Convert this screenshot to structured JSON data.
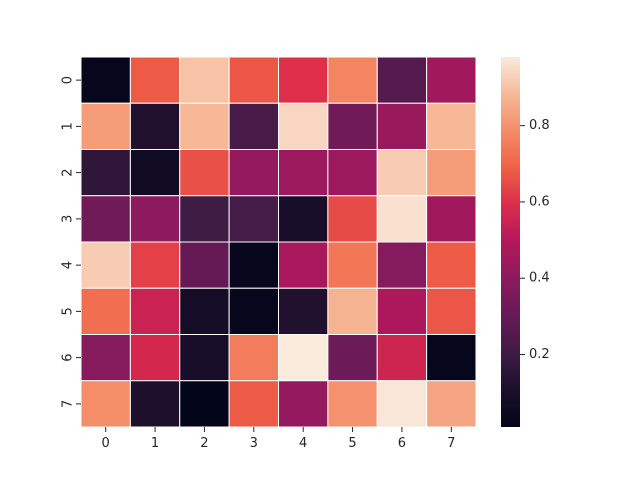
{
  "chart_data": {
    "type": "heatmap",
    "title": "",
    "xlabel": "",
    "ylabel": "",
    "x_categories": [
      "0",
      "1",
      "2",
      "3",
      "4",
      "5",
      "6",
      "7"
    ],
    "y_categories": [
      "0",
      "1",
      "2",
      "3",
      "4",
      "5",
      "6",
      "7"
    ],
    "values": [
      [
        0.02,
        0.68,
        0.9,
        0.67,
        0.6,
        0.77,
        0.26,
        0.45
      ],
      [
        0.82,
        0.12,
        0.88,
        0.23,
        0.94,
        0.33,
        0.43,
        0.88
      ],
      [
        0.16,
        0.06,
        0.66,
        0.42,
        0.44,
        0.44,
        0.92,
        0.82
      ],
      [
        0.33,
        0.4,
        0.2,
        0.22,
        0.09,
        0.65,
        0.96,
        0.45
      ],
      [
        0.92,
        0.63,
        0.3,
        0.02,
        0.47,
        0.74,
        0.38,
        0.68
      ],
      [
        0.72,
        0.55,
        0.08,
        0.02,
        0.12,
        0.87,
        0.48,
        0.67
      ],
      [
        0.38,
        0.57,
        0.09,
        0.75,
        0.98,
        0.32,
        0.56,
        0.02
      ],
      [
        0.79,
        0.11,
        0.01,
        0.68,
        0.42,
        0.8,
        0.97,
        0.84
      ]
    ],
    "colorbar": {
      "colormap": "rocket",
      "vmin": 0.01,
      "vmax": 0.98,
      "ticks": [
        0.2,
        0.4,
        0.6,
        0.8
      ],
      "tick_labels": [
        "0.2",
        "0.4",
        "0.6",
        "0.8"
      ]
    },
    "grid_line_color": "#ffffff"
  }
}
